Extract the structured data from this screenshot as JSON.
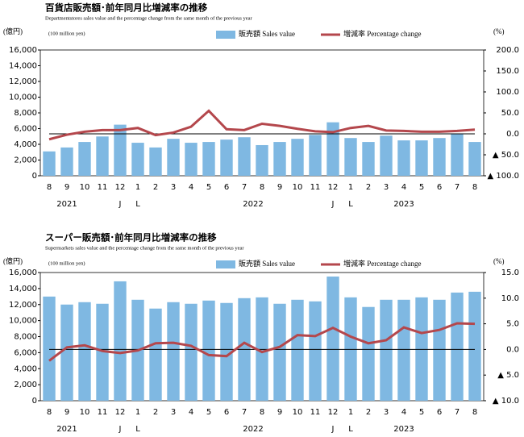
{
  "chart_data": [
    {
      "type": "bar-line",
      "title": "百貨店販売額･前年同月比増減率の推移",
      "subtitle": "Departmentstores sales value and the percentage change from the same month of the previous year",
      "y_unit": "(億円)",
      "y_unit_en": "(100 million yen)",
      "y2_unit": "(%)",
      "categories": [
        "8",
        "9",
        "10",
        "11",
        "12",
        "1",
        "2",
        "3",
        "4",
        "5",
        "6",
        "7",
        "8",
        "9",
        "10",
        "11",
        "12",
        "1",
        "2",
        "3",
        "4",
        "5",
        "6",
        "7",
        "8"
      ],
      "year_labels": [
        "2021",
        "2022",
        "2023"
      ],
      "break_marks": [
        "J",
        "L"
      ],
      "series": [
        {
          "name": "販売額 Sales value",
          "color": "#7fb8e2",
          "kind": "bar",
          "values": [
            3100,
            3600,
            4300,
            5000,
            6500,
            4200,
            3600,
            4700,
            4200,
            4300,
            4600,
            4900,
            3900,
            4300,
            4700,
            5200,
            6800,
            4800,
            4300,
            5100,
            4500,
            4500,
            4800,
            5300,
            4300
          ]
        },
        {
          "name": "増減率 Percentage change",
          "color": "#b4474c",
          "kind": "line",
          "axis": "y2",
          "values": [
            -13,
            -2,
            5,
            9,
            9,
            14,
            -3,
            3,
            17,
            55,
            11,
            9,
            24,
            19,
            12,
            6,
            4,
            14,
            19,
            8,
            7,
            5,
            5,
            7,
            10
          ]
        }
      ],
      "ylim": [
        0,
        16000
      ],
      "yticks": [
        0,
        {
          "value": 2000,
          "label": "2,000"
        },
        {
          "value": 4000,
          "label": "4,000"
        },
        {
          "value": 6000,
          "label": "6,000"
        },
        {
          "value": 8000,
          "label": "8,000"
        },
        {
          "value": 10000,
          "label": "10,000"
        },
        {
          "value": 12000,
          "label": "12,000"
        },
        {
          "value": 14000,
          "label": "14,000"
        },
        {
          "value": 16000,
          "label": "16,000"
        }
      ],
      "y2lim": [
        -100,
        200
      ],
      "y2ticks": [
        {
          "value": -100,
          "label": "▲ 100.0"
        },
        {
          "value": -50,
          "label": "▲ 50.0"
        },
        {
          "value": 0,
          "label": "0.0"
        },
        {
          "value": 50,
          "label": "50.0"
        },
        {
          "value": 100,
          "label": "100.0"
        },
        {
          "value": 150,
          "label": "150.0"
        },
        {
          "value": 200,
          "label": "200.0"
        }
      ]
    },
    {
      "type": "bar-line",
      "title": "スーパー販売額･前年同月比増減率の推移",
      "subtitle": "Supermarkets sales value and the percentage change from the same month of the previous year",
      "y_unit": "(億円)",
      "y_unit_en": "(100 million yen)",
      "y2_unit": "(%)",
      "categories": [
        "8",
        "9",
        "10",
        "11",
        "12",
        "1",
        "2",
        "3",
        "4",
        "5",
        "6",
        "7",
        "8",
        "9",
        "10",
        "11",
        "12",
        "1",
        "2",
        "3",
        "4",
        "5",
        "6",
        "7",
        "8"
      ],
      "year_labels": [
        "2021",
        "2022",
        "2023"
      ],
      "break_marks": [
        "J",
        "L"
      ],
      "series": [
        {
          "name": "販売額 Sales value",
          "color": "#7fb8e2",
          "kind": "bar",
          "values": [
            13000,
            12000,
            12300,
            12100,
            14900,
            12600,
            11500,
            12300,
            12100,
            12500,
            12200,
            12800,
            12900,
            12100,
            12600,
            12400,
            15500,
            12900,
            11700,
            12600,
            12600,
            12900,
            12600,
            13500,
            13600
          ]
        },
        {
          "name": "増減率 Percentage change",
          "color": "#b4474c",
          "kind": "line",
          "axis": "y2",
          "values": [
            -2.2,
            0.4,
            0.8,
            -0.3,
            -0.7,
            -0.2,
            1.2,
            1.3,
            0.7,
            -1.1,
            -1.3,
            1.3,
            -0.5,
            0.5,
            2.8,
            2.6,
            4.2,
            2.5,
            1.2,
            1.8,
            4.3,
            3.2,
            3.8,
            5.1,
            5.0
          ]
        }
      ],
      "ylim": [
        0,
        16000
      ],
      "yticks": [
        0,
        {
          "value": 2000,
          "label": "2,000"
        },
        {
          "value": 4000,
          "label": "4,000"
        },
        {
          "value": 6000,
          "label": "6,000"
        },
        {
          "value": 8000,
          "label": "8,000"
        },
        {
          "value": 10000,
          "label": "10,000"
        },
        {
          "value": 12000,
          "label": "12,000"
        },
        {
          "value": 14000,
          "label": "14,000"
        },
        {
          "value": 16000,
          "label": "16,000"
        }
      ],
      "y2lim": [
        -10,
        15
      ],
      "y2ticks": [
        {
          "value": -10,
          "label": "▲ 10.0"
        },
        {
          "value": -5,
          "label": "▲ 5.0"
        },
        {
          "value": 0,
          "label": "0.0"
        },
        {
          "value": 5,
          "label": "5.0"
        },
        {
          "value": 10,
          "label": "10.0"
        },
        {
          "value": 15,
          "label": "15.0"
        }
      ]
    }
  ]
}
